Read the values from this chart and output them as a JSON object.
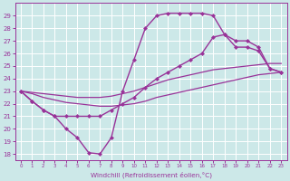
{
  "background_color": "#cce8e8",
  "grid_color": "#ffffff",
  "line_color": "#993399",
  "xlabel": "Windchill (Refroidissement éolien,°C)",
  "xlabel_color": "#993399",
  "ylim": [
    17.5,
    30.0
  ],
  "xlim": [
    -0.5,
    23.5
  ],
  "yticks": [
    18,
    19,
    20,
    21,
    22,
    23,
    24,
    25,
    26,
    27,
    28,
    29
  ],
  "xticks": [
    0,
    1,
    2,
    3,
    4,
    5,
    6,
    7,
    8,
    9,
    10,
    11,
    12,
    13,
    14,
    15,
    16,
    17,
    18,
    19,
    20,
    21,
    22,
    23
  ],
  "series": [
    {
      "x": [
        0,
        1,
        2,
        3,
        4,
        5,
        6,
        7,
        8,
        9,
        10,
        11,
        12,
        13,
        14,
        15,
        16,
        17,
        18,
        19,
        20,
        21,
        22,
        23
      ],
      "y": [
        23.0,
        22.2,
        21.5,
        21.0,
        20.0,
        19.3,
        18.1,
        18.0,
        19.3,
        23.0,
        25.5,
        28.0,
        29.0,
        29.2,
        29.2,
        29.2,
        29.2,
        29.0,
        27.5,
        27.0,
        27.0,
        26.5,
        24.8,
        24.5
      ],
      "marker": "D",
      "markersize": 2.0,
      "linewidth": 1.0
    },
    {
      "x": [
        0,
        1,
        2,
        3,
        4,
        5,
        6,
        7,
        8,
        9,
        10,
        11,
        12,
        13,
        14,
        15,
        16,
        17,
        18,
        19,
        20,
        21,
        22,
        23
      ],
      "y": [
        23.0,
        22.8,
        22.5,
        22.3,
        22.1,
        22.0,
        21.9,
        21.8,
        21.8,
        21.9,
        22.0,
        22.2,
        22.5,
        22.7,
        22.9,
        23.1,
        23.3,
        23.5,
        23.7,
        23.9,
        24.1,
        24.3,
        24.4,
        24.5
      ],
      "marker": null,
      "markersize": 0,
      "linewidth": 0.9
    },
    {
      "x": [
        0,
        1,
        2,
        3,
        4,
        5,
        6,
        7,
        8,
        9,
        10,
        11,
        12,
        13,
        14,
        15,
        16,
        17,
        18,
        19,
        20,
        21,
        22,
        23
      ],
      "y": [
        23.0,
        22.9,
        22.8,
        22.7,
        22.6,
        22.5,
        22.5,
        22.5,
        22.6,
        22.8,
        23.0,
        23.3,
        23.6,
        23.9,
        24.1,
        24.3,
        24.5,
        24.7,
        24.8,
        24.9,
        25.0,
        25.1,
        25.2,
        25.2
      ],
      "marker": null,
      "markersize": 0,
      "linewidth": 0.9
    },
    {
      "x": [
        0,
        1,
        2,
        3,
        4,
        5,
        6,
        7,
        8,
        9,
        10,
        11,
        12,
        13,
        14,
        15,
        16,
        17,
        18,
        19,
        20,
        21,
        22,
        23
      ],
      "y": [
        23.0,
        22.2,
        21.5,
        21.0,
        21.0,
        21.0,
        21.0,
        21.0,
        21.5,
        22.0,
        22.5,
        23.3,
        24.0,
        24.5,
        25.0,
        25.5,
        26.0,
        27.3,
        27.5,
        26.5,
        26.5,
        26.2,
        24.8,
        24.5
      ],
      "marker": "D",
      "markersize": 2.0,
      "linewidth": 1.0
    }
  ]
}
